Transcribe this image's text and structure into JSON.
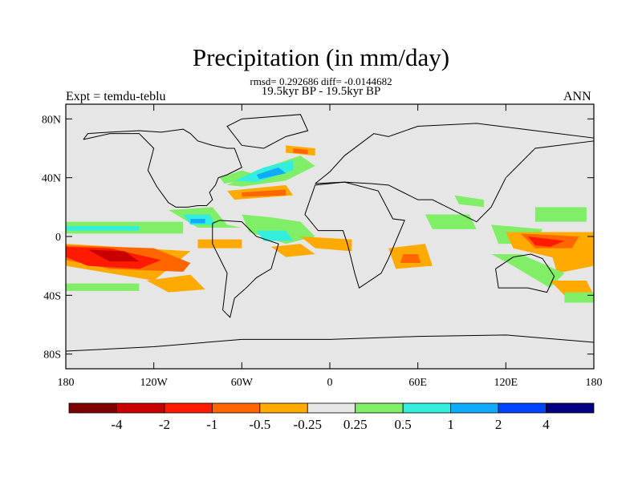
{
  "title": "Precipitation (in mm/day)",
  "stats_line": "rmsd= 0.292686 diff= -0.0144682",
  "period_line": "19.5kyr BP - 19.5kyr BP",
  "experiment_label": "Expt = temdu-teblu",
  "season_label": "ANN",
  "map": {
    "projection": "cylindrical-equidistant",
    "lon_range": [
      -180,
      180
    ],
    "lat_range": [
      -90,
      90
    ],
    "background_color": "#e6e6e6",
    "lat_ticks": [
      {
        "value": 80,
        "label": "80N"
      },
      {
        "value": 40,
        "label": "40N"
      },
      {
        "value": 0,
        "label": "0"
      },
      {
        "value": -40,
        "label": "40S"
      },
      {
        "value": -80,
        "label": "80S"
      }
    ],
    "lon_ticks": [
      {
        "value": -180,
        "label": "180"
      },
      {
        "value": -120,
        "label": "120W"
      },
      {
        "value": -60,
        "label": "60W"
      },
      {
        "value": 0,
        "label": "0"
      },
      {
        "value": 60,
        "label": "60E"
      },
      {
        "value": 120,
        "label": "120E"
      },
      {
        "value": 180,
        "label": "180"
      }
    ],
    "anomaly_regions": [
      {
        "lon": [
          -180,
          -95,
          -120,
          -150,
          -180
        ],
        "lat": [
          -5,
          -10,
          -30,
          -25,
          -20
        ],
        "color": "#ffaa00"
      },
      {
        "lon": [
          -180,
          -120,
          -95,
          -100,
          -150,
          -180
        ],
        "lat": [
          -6,
          -8,
          -18,
          -24,
          -22,
          -16
        ],
        "color": "#ff6600"
      },
      {
        "lon": [
          -180,
          -150,
          -115,
          -130,
          -165,
          -180
        ],
        "lat": [
          -7,
          -8,
          -16,
          -22,
          -20,
          -14
        ],
        "color": "#ff1a00"
      },
      {
        "lon": [
          -165,
          -140,
          -130,
          -150
        ],
        "lat": [
          -9,
          -10,
          -17,
          -17
        ],
        "color": "#c80000"
      },
      {
        "lon": [
          -180,
          -100,
          -100,
          -180
        ],
        "lat": [
          10,
          10,
          2,
          2
        ],
        "color": "#80ee66"
      },
      {
        "lon": [
          -180,
          -130,
          -130,
          -180
        ],
        "lat": [
          7,
          7,
          4,
          4
        ],
        "color": "#33eedd"
      },
      {
        "lon": [
          -125,
          -95,
          -85,
          -110
        ],
        "lat": [
          -30,
          -26,
          -36,
          -38
        ],
        "color": "#ffaa00"
      },
      {
        "lon": [
          -180,
          -130,
          -130,
          -180
        ],
        "lat": [
          -32,
          -32,
          -37,
          -37
        ],
        "color": "#80ee66"
      },
      {
        "lon": [
          -90,
          -60,
          -60,
          -90
        ],
        "lat": [
          -2,
          -2,
          -8,
          -8
        ],
        "color": "#ffaa00"
      },
      {
        "lon": [
          -110,
          -80,
          -70,
          -60,
          -90
        ],
        "lat": [
          18,
          20,
          8,
          6,
          6
        ],
        "color": "#80ee66"
      },
      {
        "lon": [
          -100,
          -82,
          -78,
          -95
        ],
        "lat": [
          15,
          15,
          8,
          8
        ],
        "color": "#33eedd"
      },
      {
        "lon": [
          -95,
          -85,
          -85,
          -95
        ],
        "lat": [
          12,
          12,
          9,
          9
        ],
        "color": "#10aaff"
      },
      {
        "lon": [
          -60,
          -40,
          -20,
          -10,
          -30,
          -55
        ],
        "lat": [
          15,
          13,
          10,
          0,
          -5,
          3
        ],
        "color": "#80ee66"
      },
      {
        "lon": [
          -50,
          -30,
          -25,
          -45
        ],
        "lat": [
          4,
          4,
          -3,
          -3
        ],
        "color": "#33eedd"
      },
      {
        "lon": [
          -40,
          -20,
          -10,
          -30
        ],
        "lat": [
          -7,
          -5,
          -12,
          -14
        ],
        "color": "#ffaa00"
      },
      {
        "lon": [
          -20,
          15,
          15,
          -10
        ],
        "lat": [
          0,
          -2,
          -10,
          -8
        ],
        "color": "#ffaa00"
      },
      {
        "lon": [
          -75,
          -60,
          -50,
          -60,
          -72
        ],
        "lat": [
          40,
          45,
          42,
          38,
          36
        ],
        "color": "#80ee66"
      },
      {
        "lon": [
          -70,
          -50,
          -20,
          -10,
          -30,
          -60
        ],
        "lat": [
          35,
          45,
          55,
          48,
          38,
          34
        ],
        "color": "#80ee66"
      },
      {
        "lon": [
          -65,
          -45,
          -25,
          -25,
          -50
        ],
        "lat": [
          38,
          47,
          52,
          45,
          37
        ],
        "color": "#33eedd"
      },
      {
        "lon": [
          -50,
          -35,
          -30,
          -48
        ],
        "lat": [
          42,
          47,
          43,
          39
        ],
        "color": "#10aaff"
      },
      {
        "lon": [
          -70,
          -30,
          -25,
          -65
        ],
        "lat": [
          31,
          35,
          28,
          25
        ],
        "color": "#ffaa00"
      },
      {
        "lon": [
          -60,
          -30,
          -30,
          -60
        ],
        "lat": [
          30,
          32,
          28,
          27
        ],
        "color": "#ff6600"
      },
      {
        "lon": [
          -30,
          -10,
          -10,
          -30
        ],
        "lat": [
          62,
          60,
          55,
          57
        ],
        "color": "#ffaa00"
      },
      {
        "lon": [
          -25,
          -15,
          -15,
          -25
        ],
        "lat": [
          60,
          59,
          56,
          57
        ],
        "color": "#ff6600"
      },
      {
        "lon": [
          40,
          65,
          70,
          45
        ],
        "lat": [
          -8,
          -5,
          -20,
          -22
        ],
        "color": "#ffaa00"
      },
      {
        "lon": [
          50,
          60,
          62,
          48
        ],
        "lat": [
          -12,
          -12,
          -18,
          -18
        ],
        "color": "#ff6600"
      },
      {
        "lon": [
          65,
          95,
          100,
          70
        ],
        "lat": [
          15,
          15,
          5,
          5
        ],
        "color": "#80ee66"
      },
      {
        "lon": [
          85,
          105,
          105,
          88
        ],
        "lat": [
          28,
          25,
          20,
          22
        ],
        "color": "#80ee66"
      },
      {
        "lon": [
          110,
          145,
          140,
          115
        ],
        "lat": [
          8,
          5,
          -5,
          -5
        ],
        "color": "#80ee66"
      },
      {
        "lon": [
          120,
          180,
          180,
          155,
          125
        ],
        "lat": [
          3,
          3,
          -12,
          -15,
          -8
        ],
        "color": "#ffaa00"
      },
      {
        "lon": [
          130,
          170,
          165,
          140
        ],
        "lat": [
          2,
          0,
          -8,
          -8
        ],
        "color": "#ff6600"
      },
      {
        "lon": [
          135,
          160,
          150,
          140
        ],
        "lat": [
          0,
          -3,
          -7,
          -6
        ],
        "color": "#ff1a00"
      },
      {
        "lon": [
          150,
          180,
          180,
          155
        ],
        "lat": [
          -8,
          -10,
          -20,
          -25
        ],
        "color": "#ffaa00"
      },
      {
        "lon": [
          110,
          130,
          160,
          150,
          125
        ],
        "lat": [
          -12,
          -12,
          -25,
          -35,
          -20
        ],
        "color": "#80ee66"
      },
      {
        "lon": [
          150,
          175,
          180,
          160
        ],
        "lat": [
          -30,
          -30,
          -40,
          -40
        ],
        "color": "#ffaa00"
      },
      {
        "lon": [
          160,
          180,
          180,
          160
        ],
        "lat": [
          -38,
          -38,
          -45,
          -45
        ],
        "color": "#80ee66"
      },
      {
        "lon": [
          140,
          175,
          175,
          140
        ],
        "lat": [
          20,
          20,
          10,
          10
        ],
        "color": "#80ee66"
      }
    ],
    "coastlines": [
      {
        "lon": [
          -168,
          -150,
          -130,
          -120,
          -124,
          -118,
          -110,
          -105,
          -97,
          -90,
          -84,
          -80,
          -82,
          -78,
          -76,
          -70,
          -64,
          -60,
          -65,
          -70,
          -80,
          -90,
          -95,
          -100,
          -115,
          -130,
          -150,
          -165,
          -168
        ],
        "lat": [
          66,
          70,
          70,
          60,
          45,
          34,
          23,
          20,
          20,
          21,
          21,
          25,
          30,
          35,
          40,
          42,
          45,
          47,
          60,
          60,
          62,
          65,
          70,
          73,
          71,
          72,
          71,
          70,
          66
        ]
      },
      {
        "lon": [
          -80,
          -75,
          -60,
          -50,
          -35,
          -40,
          -50,
          -57,
          -65,
          -68,
          -73,
          -70,
          -75,
          -80,
          -80
        ],
        "lat": [
          9,
          11,
          10,
          0,
          -5,
          -22,
          -28,
          -35,
          -42,
          -55,
          -50,
          -25,
          -15,
          -5,
          9
        ]
      },
      {
        "lon": [
          -17,
          -10,
          10,
          33,
          43,
          51,
          40,
          35,
          20,
          17,
          12,
          9,
          -8,
          -17
        ],
        "lat": [
          15,
          35,
          37,
          31,
          12,
          11,
          -15,
          -25,
          -35,
          -25,
          -5,
          4,
          4,
          15
        ]
      },
      {
        "lon": [
          -10,
          0,
          10,
          30,
          40,
          60,
          100,
          140,
          180,
          180,
          140,
          120,
          110,
          100,
          80,
          70,
          60,
          50,
          40,
          28,
          10,
          -10
        ],
        "lat": [
          36,
          44,
          55,
          70,
          68,
          75,
          77,
          72,
          67,
          65,
          60,
          40,
          20,
          10,
          20,
          25,
          25,
          30,
          35,
          36,
          37,
          36
        ]
      },
      {
        "lon": [
          113,
          125,
          137,
          145,
          153,
          148,
          135,
          115,
          113
        ],
        "lat": [
          -22,
          -14,
          -12,
          -15,
          -27,
          -38,
          -35,
          -35,
          -22
        ]
      },
      {
        "lon": [
          -60,
          -20,
          -15,
          -30,
          -45,
          -60,
          -70,
          -60
        ],
        "lat": [
          80,
          83,
          72,
          68,
          60,
          62,
          75,
          80
        ]
      },
      {
        "lon": [
          -180,
          -120,
          -60,
          0,
          60,
          120,
          180
        ],
        "lat": [
          -78,
          -75,
          -70,
          -70,
          -68,
          -67,
          -72
        ]
      }
    ]
  },
  "colorbar": {
    "colors": [
      "#7f0000",
      "#c80000",
      "#ff1a00",
      "#ff6600",
      "#ffaa00",
      "#e6e6e6",
      "#80ee66",
      "#33eedd",
      "#10aaff",
      "#0044ff",
      "#000080"
    ],
    "labels": [
      "-4",
      "-2",
      "-1",
      "-0.5",
      "-0.25",
      "0.25",
      "0.5",
      "1",
      "2",
      "4"
    ]
  }
}
